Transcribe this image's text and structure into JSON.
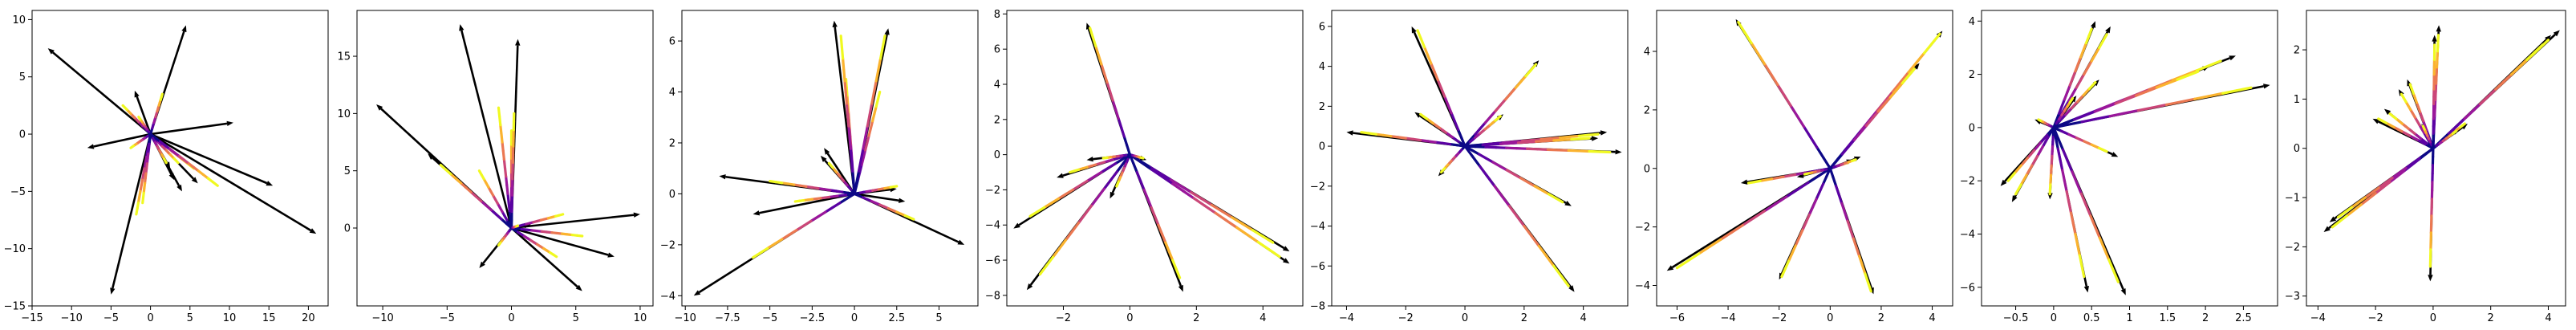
{
  "colors": {
    "arrow": "#000000",
    "gradient": [
      "#0d0887",
      "#5b02a3",
      "#9a179b",
      "#cb4678",
      "#eb7852",
      "#fbb32f",
      "#f0f921"
    ]
  },
  "chart_data": [
    {
      "type": "quiver",
      "xlim": [
        -15,
        22.5
      ],
      "ylim": [
        -15,
        10.8
      ],
      "xticks": [
        -15,
        -10,
        -5,
        0,
        5,
        10,
        15,
        20
      ],
      "yticks": [
        -15,
        -10,
        -5,
        0,
        5,
        10
      ],
      "arrows": [
        [
          -13,
          7.5
        ],
        [
          -8,
          -1.2
        ],
        [
          -2,
          3.8
        ],
        [
          4.5,
          9.5
        ],
        [
          10.5,
          1
        ],
        [
          15.5,
          -4.5
        ],
        [
          21,
          -8.7
        ],
        [
          6,
          -4.3
        ],
        [
          4,
          -5
        ],
        [
          3,
          -4
        ],
        [
          -5,
          -14
        ],
        [
          2.5,
          -3
        ]
      ],
      "trails": [
        [
          -3.5,
          2.5
        ],
        [
          -2.5,
          -1.2
        ],
        [
          1.5,
          3.5
        ],
        [
          -1.8,
          -7
        ],
        [
          -1,
          -6
        ],
        [
          3.5,
          -2.5
        ],
        [
          5.5,
          -3
        ],
        [
          8.5,
          -4.5
        ],
        [
          -1.5,
          1.5
        ],
        [
          2,
          -2.5
        ]
      ]
    },
    {
      "type": "quiver",
      "xlim": [
        -12,
        11
      ],
      "ylim": [
        -6.8,
        19
      ],
      "xticks": [
        -10,
        -5,
        0,
        5,
        10
      ],
      "yticks": [
        0,
        5,
        10,
        15
      ],
      "arrows": [
        [
          -10.5,
          10.8
        ],
        [
          -4,
          17.8
        ],
        [
          0.5,
          16.5
        ],
        [
          -2.5,
          -3.5
        ],
        [
          10,
          1.2
        ],
        [
          5.5,
          -5.5
        ],
        [
          8,
          -2.5
        ],
        [
          1.5,
          0.3
        ],
        [
          -6.5,
          6.5
        ]
      ],
      "trails": [
        [
          -1,
          10.5
        ],
        [
          0,
          8.5
        ],
        [
          0.2,
          10
        ],
        [
          -5.5,
          5.5
        ],
        [
          4,
          1.2
        ],
        [
          3.5,
          -2.5
        ],
        [
          5.5,
          -0.7
        ],
        [
          -1,
          -1.5
        ],
        [
          -2.5,
          5
        ],
        [
          0.5,
          0.2
        ]
      ]
    },
    {
      "type": "quiver",
      "xlim": [
        -10.2,
        7.3
      ],
      "ylim": [
        -4.4,
        7.2
      ],
      "xticks": [
        -10,
        -7.5,
        -5,
        -2.5,
        0,
        2.5,
        5
      ],
      "yticks": [
        -4,
        -2,
        0,
        2,
        4,
        6
      ],
      "arrows": [
        [
          -9.5,
          -4
        ],
        [
          -8,
          0.7
        ],
        [
          -6,
          -0.8
        ],
        [
          -1.8,
          1.8
        ],
        [
          -1.2,
          6.8
        ],
        [
          2,
          6.5
        ],
        [
          3,
          -0.3
        ],
        [
          6.5,
          -2
        ],
        [
          2.5,
          0.2
        ],
        [
          -2,
          1.5
        ]
      ],
      "trails": [
        [
          -6,
          -2.5
        ],
        [
          -5,
          0.5
        ],
        [
          -3.5,
          -0.3
        ],
        [
          -0.5,
          4.5
        ],
        [
          1.5,
          4
        ],
        [
          3.5,
          -1
        ],
        [
          2.5,
          0.3
        ],
        [
          -1.5,
          1.2
        ],
        [
          -0.8,
          6.2
        ],
        [
          1.8,
          6.2
        ]
      ]
    },
    {
      "type": "quiver",
      "xlim": [
        -3.7,
        5.2
      ],
      "ylim": [
        -8.6,
        8.2
      ],
      "xticks": [
        -2,
        0,
        2,
        4
      ],
      "yticks": [
        -8,
        -6,
        -4,
        -2,
        0,
        2,
        4,
        6,
        8
      ],
      "arrows": [
        [
          -1.3,
          7.5
        ],
        [
          -3.5,
          -4.2
        ],
        [
          -3.1,
          -7.7
        ],
        [
          -2.2,
          -1.3
        ],
        [
          -1.3,
          -0.3
        ],
        [
          -0.6,
          -2.5
        ],
        [
          1.6,
          -7.8
        ],
        [
          4.8,
          -5.5
        ],
        [
          4.8,
          -6.2
        ],
        [
          0.5,
          -0.3
        ]
      ],
      "trails": [
        [
          -1.2,
          7.2
        ],
        [
          -3,
          -3.5
        ],
        [
          -2.7,
          -6.8
        ],
        [
          -1.8,
          -1
        ],
        [
          -0.8,
          -0.2
        ],
        [
          1.5,
          -7
        ],
        [
          4.3,
          -5
        ],
        [
          4.5,
          -5.8
        ],
        [
          0.4,
          -0.2
        ],
        [
          -0.4,
          -1.8
        ]
      ]
    },
    {
      "type": "quiver",
      "xlim": [
        -4.5,
        5.5
      ],
      "ylim": [
        -8.0,
        6.8
      ],
      "xticks": [
        -4,
        -2,
        0,
        2,
        4
      ],
      "yticks": [
        -8,
        -6,
        -4,
        -2,
        0,
        2,
        4,
        6
      ],
      "arrows": [
        [
          -4,
          0.7
        ],
        [
          -1.8,
          6
        ],
        [
          -1.7,
          1.7
        ],
        [
          -0.9,
          -1.5
        ],
        [
          2.5,
          4.3
        ],
        [
          1.3,
          1.6
        ],
        [
          4.8,
          0.7
        ],
        [
          5.3,
          -0.3
        ],
        [
          3.6,
          -3
        ],
        [
          3.7,
          -7.3
        ],
        [
          4.5,
          0.4
        ]
      ],
      "trails": [
        [
          -3.5,
          0.7
        ],
        [
          -1.6,
          5.8
        ],
        [
          -1.5,
          1.6
        ],
        [
          -0.8,
          -1.3
        ],
        [
          2.4,
          4.1
        ],
        [
          1.2,
          1.5
        ],
        [
          4.5,
          0.6
        ],
        [
          4.9,
          -0.3
        ],
        [
          3.3,
          -2.8
        ],
        [
          3.5,
          -7
        ],
        [
          4.2,
          0.4
        ]
      ]
    },
    {
      "type": "quiver",
      "xlim": [
        -6.8,
        4.8
      ],
      "ylim": [
        -4.7,
        5.4
      ],
      "xticks": [
        -6,
        -4,
        -2,
        0,
        2,
        4
      ],
      "yticks": [
        -4,
        -2,
        0,
        2,
        4
      ],
      "arrows": [
        [
          -3.7,
          5.1
        ],
        [
          -3.5,
          -0.5
        ],
        [
          -6.4,
          -3.5
        ],
        [
          -2,
          -3.8
        ],
        [
          -1.3,
          -0.3
        ],
        [
          1.7,
          -4.3
        ],
        [
          4.4,
          4.7
        ],
        [
          3.5,
          3.6
        ],
        [
          0.9,
          0.3
        ],
        [
          1.2,
          0.4
        ]
      ],
      "trails": [
        [
          -3.6,
          5
        ],
        [
          -3.2,
          -0.5
        ],
        [
          -6,
          -3.4
        ],
        [
          -1.9,
          -3.7
        ],
        [
          -1,
          -0.2
        ],
        [
          1.6,
          -4.2
        ],
        [
          4.3,
          4.6
        ],
        [
          3.3,
          3.4
        ],
        [
          0.7,
          0.2
        ],
        [
          1,
          0.3
        ]
      ]
    },
    {
      "type": "quiver",
      "xlim": [
        -0.95,
        2.95
      ],
      "ylim": [
        -6.7,
        4.4
      ],
      "xticks": [
        -0.5,
        0,
        0.5,
        1,
        1.5,
        2,
        2.5
      ],
      "yticks": [
        -6,
        -4,
        -2,
        0,
        2,
        4
      ],
      "arrows": [
        [
          -0.55,
          -2.8
        ],
        [
          -0.7,
          -2.2
        ],
        [
          -0.05,
          -2.7
        ],
        [
          0.55,
          4
        ],
        [
          0.75,
          3.8
        ],
        [
          2.4,
          2.7
        ],
        [
          2.85,
          1.6
        ],
        [
          2.05,
          2.3
        ],
        [
          0.85,
          -1.1
        ],
        [
          0.45,
          -6.2
        ],
        [
          0.95,
          -6.3
        ],
        [
          0.6,
          1.8
        ],
        [
          -0.25,
          0.3
        ],
        [
          0.3,
          1.2
        ]
      ],
      "trails": [
        [
          -0.5,
          -2.5
        ],
        [
          -0.6,
          -2.0
        ],
        [
          -0.05,
          -2.5
        ],
        [
          0.5,
          3.7
        ],
        [
          0.7,
          3.5
        ],
        [
          2.2,
          2.5
        ],
        [
          2.6,
          1.5
        ],
        [
          1.9,
          2.1
        ],
        [
          0.7,
          -0.9
        ],
        [
          0.4,
          -5.6
        ],
        [
          0.85,
          -5.8
        ],
        [
          0.55,
          1.7
        ],
        [
          -0.2,
          0.3
        ],
        [
          0.25,
          1.1
        ]
      ]
    },
    {
      "type": "quiver",
      "xlim": [
        -4.4,
        4.6
      ],
      "ylim": [
        -3.2,
        2.8
      ],
      "xticks": [
        -4,
        -2,
        0,
        2,
        4
      ],
      "yticks": [
        -3,
        -2,
        -1,
        0,
        1,
        2
      ],
      "arrows": [
        [
          -3.8,
          -1.7
        ],
        [
          -3.6,
          -1.5
        ],
        [
          -2.1,
          0.6
        ],
        [
          -1.7,
          0.8
        ],
        [
          -1.2,
          1.2
        ],
        [
          -0.9,
          1.4
        ],
        [
          -0.4,
          0.5
        ],
        [
          0.2,
          2.5
        ],
        [
          0.05,
          2.3
        ],
        [
          -0.1,
          -2.7
        ],
        [
          1.2,
          0.5
        ],
        [
          4.4,
          2.4
        ],
        [
          4.1,
          2.3
        ],
        [
          0.9,
          0.4
        ]
      ],
      "trails": [
        [
          -3.5,
          -1.6
        ],
        [
          -3.3,
          -1.4
        ],
        [
          -1.9,
          0.6
        ],
        [
          -1.5,
          0.7
        ],
        [
          -1.1,
          1.1
        ],
        [
          -0.8,
          1.3
        ],
        [
          -0.35,
          0.45
        ],
        [
          0.18,
          2.3
        ],
        [
          0.05,
          2.1
        ],
        [
          -0.1,
          -2.4
        ],
        [
          1.1,
          0.5
        ],
        [
          4.0,
          2.2
        ],
        [
          3.8,
          2.1
        ],
        [
          0.8,
          0.35
        ]
      ]
    }
  ]
}
